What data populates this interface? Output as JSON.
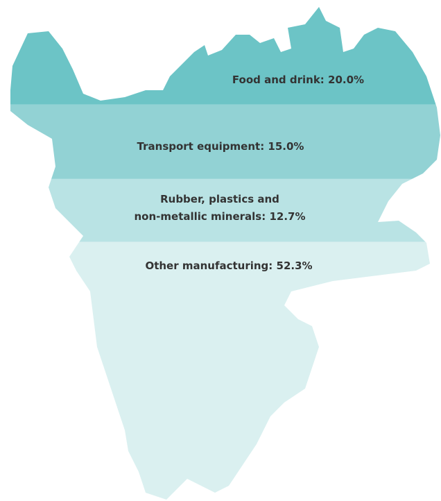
{
  "chart_data": {
    "type": "map-bands",
    "values": [
      20.0,
      15.0,
      12.7,
      52.3
    ],
    "value_labels": [
      "Food and drink: 20.0%",
      "Transport equipment: 15.0%",
      "Rubber, plastics and\nnon-metallic minerals: 12.7%",
      "Other manufacturing: 52.3%"
    ],
    "colors": [
      "#6cc4c6",
      "#92d2d4",
      "#b9e3e4",
      "#daf0f0"
    ]
  }
}
